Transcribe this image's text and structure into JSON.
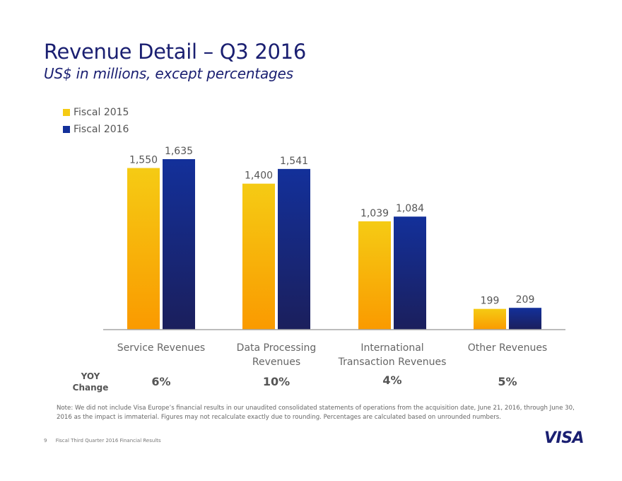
{
  "header": {
    "title": "Revenue Detail – Q3 2016",
    "subtitle": "US$ in millions, except percentages"
  },
  "colors": {
    "fiscal_2015_top": "#f5cb14",
    "fiscal_2015_bottom": "#fa9a00",
    "fiscal_2016_top": "#13309a",
    "fiscal_2016_bottom": "#1b1f5c",
    "title": "#1a1f71"
  },
  "chart_data": {
    "type": "bar",
    "title": "Revenue Detail – Q3 2016",
    "subtitle": "US$ in millions, except percentages",
    "xlabel": "",
    "ylabel": "",
    "categories": [
      "Service Revenues",
      "Data Processing Revenues",
      "International Transaction Revenues",
      "Other Revenues"
    ],
    "category_label_lines": [
      [
        "Service Revenues"
      ],
      [
        "Data Processing",
        "Revenues"
      ],
      [
        "International",
        "Transaction Revenues"
      ],
      [
        "Other Revenues"
      ]
    ],
    "series": [
      {
        "name": "Fiscal 2015",
        "values": [
          1550,
          1400,
          1039,
          199
        ],
        "labels": [
          "1,550",
          "1,400",
          "1,039",
          "199"
        ]
      },
      {
        "name": "Fiscal 2016",
        "values": [
          1635,
          1541,
          1084,
          209
        ],
        "labels": [
          "1,635",
          "1,541",
          "1,084",
          "209"
        ]
      }
    ],
    "ylim": [
      0,
      1635
    ],
    "grid": false,
    "legend": "top-left",
    "yoy_change": {
      "label_line1": "YOY",
      "label_line2": "Change",
      "values": [
        "6%",
        "10%",
        "4%",
        "5%"
      ]
    }
  },
  "note": "Note: We did not include Visa Europe’s financial results in our unaudited consolidated statements of operations from the acquisition date, June 21, 2016, through June 30, 2016 as the impact is immaterial.  Figures may not recalculate exactly due to rounding. Percentages are calculated based on unrounded numbers.",
  "footer": {
    "page_number": "9",
    "text": "Fiscal Third Quarter 2016 Financial Results"
  },
  "logo": "VISA"
}
